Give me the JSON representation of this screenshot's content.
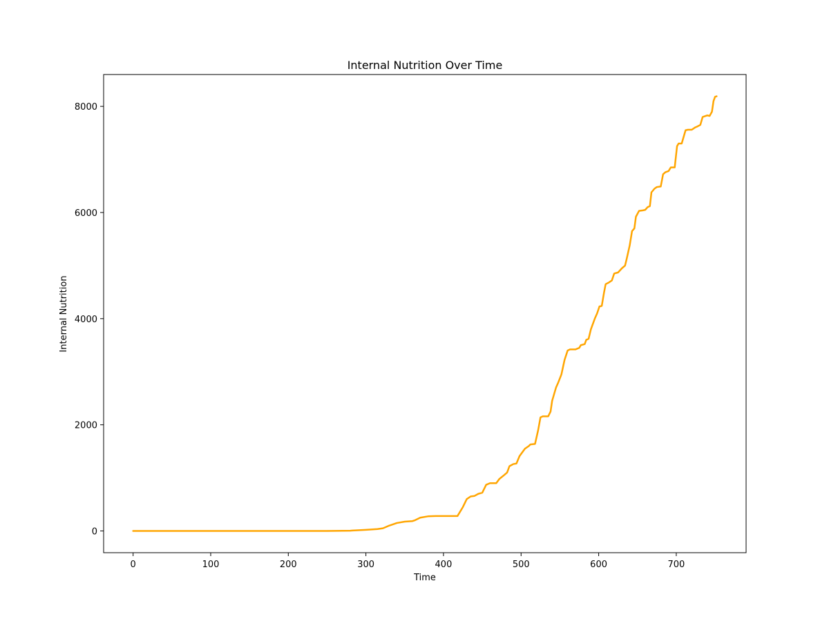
{
  "chart_data": {
    "type": "line",
    "title": "Internal Nutrition Over Time",
    "xlabel": "Time",
    "ylabel": "Internal Nutrition",
    "xlim": [
      -38,
      790
    ],
    "ylim": [
      -410,
      8600
    ],
    "grid": false,
    "xticks": [
      0,
      100,
      200,
      300,
      400,
      500,
      600,
      700
    ],
    "yticks": [
      0,
      2000,
      4000,
      6000,
      8000
    ],
    "series": [
      {
        "color": "#ffa500",
        "x": [
          0,
          100,
          200,
          250,
          280,
          300,
          315,
          322,
          330,
          340,
          350,
          360,
          363,
          370,
          380,
          390,
          418,
          425,
          430,
          435,
          440,
          445,
          450,
          455,
          460,
          468,
          472,
          478,
          482,
          485,
          490,
          494,
          498,
          502,
          505,
          510,
          512,
          518,
          522,
          525,
          528,
          530,
          535,
          538,
          540,
          542,
          545,
          548,
          552,
          556,
          560,
          563,
          570,
          575,
          577,
          582,
          584,
          587,
          590,
          595,
          598,
          601,
          604,
          607,
          609,
          613,
          617,
          620,
          625,
          630,
          634,
          636,
          640,
          643,
          646,
          648,
          652,
          657,
          660,
          663,
          666,
          668,
          672,
          675,
          680,
          683,
          686,
          690,
          693,
          698,
          701,
          703,
          707,
          712,
          715,
          720,
          724,
          727,
          731,
          734,
          740,
          743,
          746,
          748,
          750,
          752
        ],
        "values": [
          0,
          0,
          0,
          0,
          5,
          20,
          35,
          50,
          100,
          150,
          175,
          185,
          200,
          250,
          275,
          280,
          280,
          450,
          600,
          650,
          660,
          700,
          720,
          870,
          900,
          900,
          980,
          1050,
          1100,
          1220,
          1260,
          1270,
          1410,
          1490,
          1550,
          1600,
          1630,
          1640,
          1900,
          2140,
          2160,
          2160,
          2160,
          2250,
          2450,
          2550,
          2700,
          2800,
          2950,
          3220,
          3400,
          3420,
          3420,
          3450,
          3500,
          3520,
          3600,
          3620,
          3800,
          4000,
          4100,
          4230,
          4240,
          4500,
          4650,
          4680,
          4720,
          4850,
          4870,
          4950,
          5000,
          5120,
          5380,
          5650,
          5700,
          5920,
          6030,
          6040,
          6050,
          6100,
          6120,
          6380,
          6450,
          6480,
          6490,
          6720,
          6760,
          6780,
          6850,
          6850,
          7250,
          7300,
          7300,
          7550,
          7560,
          7560,
          7600,
          7620,
          7650,
          7800,
          7830,
          7820,
          7900,
          8100,
          8180,
          8190
        ]
      }
    ]
  }
}
